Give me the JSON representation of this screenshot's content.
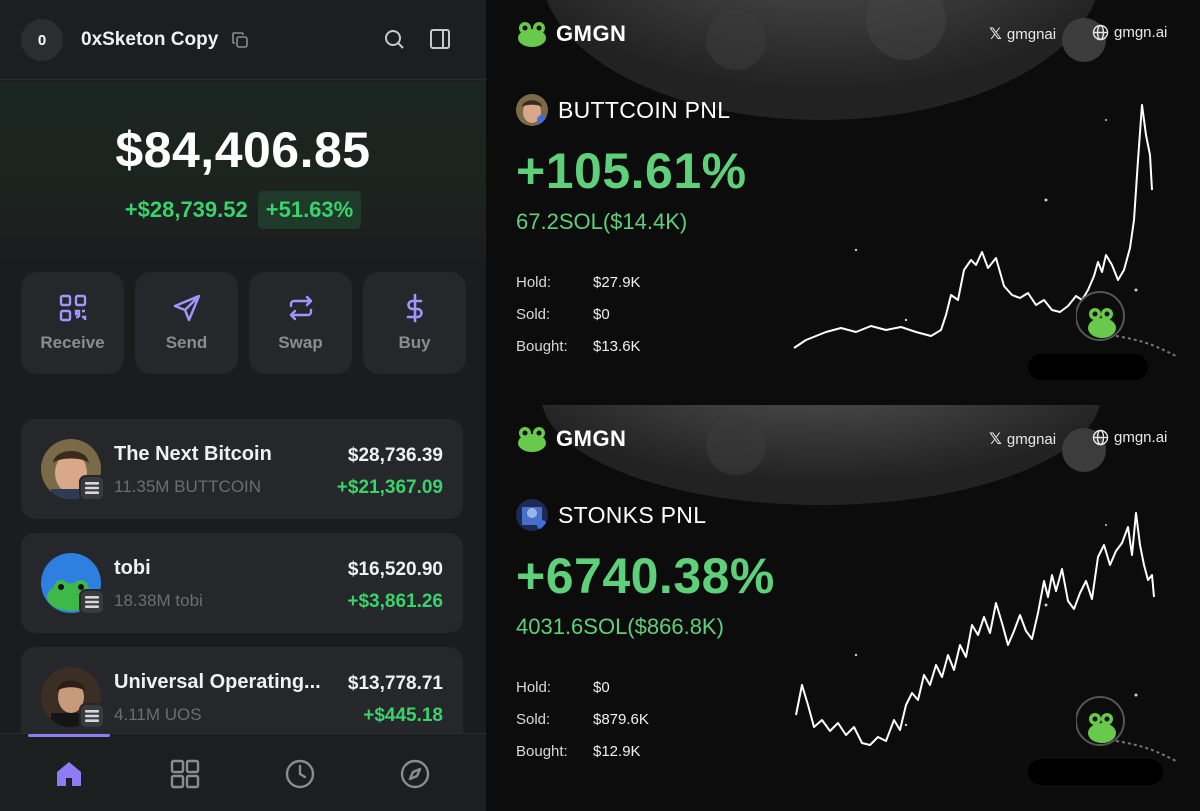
{
  "wallet": {
    "avatar_initial": "0",
    "account_name": "0xSketon Copy",
    "balance": "$84,406.85",
    "gain_abs": "+$28,739.52",
    "gain_pct": "+51.63%",
    "actions": [
      {
        "label": "Receive",
        "icon": "qr-code-icon"
      },
      {
        "label": "Send",
        "icon": "send-icon"
      },
      {
        "label": "Swap",
        "icon": "swap-icon"
      },
      {
        "label": "Buy",
        "icon": "dollar-icon"
      }
    ],
    "tokens": [
      {
        "name": "The Next Bitcoin",
        "amount": "11.35M BUTTCOIN",
        "value": "$28,736.39",
        "pnl": "+$21,367.09"
      },
      {
        "name": "tobi",
        "amount": "18.38M tobi",
        "value": "$16,520.90",
        "pnl": "+$3,861.26"
      },
      {
        "name": "Universal Operating...",
        "amount": "4.11M UOS",
        "value": "$13,778.71",
        "pnl": "+$445.18"
      }
    ],
    "nav": [
      "home-icon",
      "grid-icon",
      "clock-icon",
      "compass-icon"
    ],
    "colors": {
      "accent": "#8f7cf5",
      "positive": "#39d36b"
    }
  },
  "cards": [
    {
      "logo": "GMGN",
      "twitter": "gmgnai",
      "site": "gmgn.ai",
      "title": "BUTTCOIN PNL",
      "pct": "+105.61%",
      "sol": "67.2SOL($14.4K)",
      "stats": [
        {
          "label": "Hold:",
          "value": "$27.9K"
        },
        {
          "label": "Sold:",
          "value": "$0"
        },
        {
          "label": "Bought:",
          "value": "$13.6K"
        }
      ]
    },
    {
      "logo": "GMGN",
      "twitter": "gmgnai",
      "site": "gmgn.ai",
      "title": "STONKS PNL",
      "pct": "+6740.38%",
      "sol": "4031.6SOL($866.8K)",
      "stats": [
        {
          "label": "Hold:",
          "value": "$0"
        },
        {
          "label": "Sold:",
          "value": "$879.6K"
        },
        {
          "label": "Bought:",
          "value": "$12.9K"
        }
      ]
    }
  ]
}
